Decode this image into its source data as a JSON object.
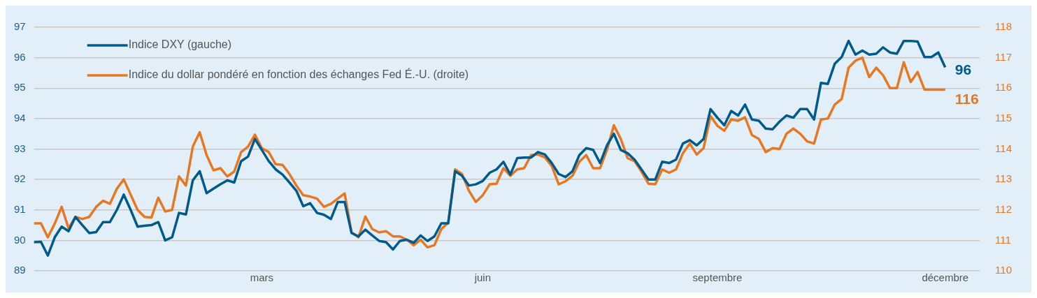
{
  "chart_data": {
    "type": "line",
    "categories": [
      null,
      null,
      null,
      null,
      null,
      null,
      null,
      null,
      null,
      null,
      null,
      null,
      null,
      null,
      null,
      null,
      null,
      null,
      null,
      null,
      null,
      null,
      null,
      null,
      null,
      null,
      null,
      null,
      null,
      null,
      null,
      null,
      null,
      "mars",
      null,
      null,
      null,
      null,
      null,
      null,
      null,
      null,
      null,
      null,
      null,
      null,
      null,
      null,
      null,
      null,
      null,
      null,
      null,
      null,
      null,
      null,
      null,
      null,
      null,
      null,
      null,
      null,
      null,
      null,
      null,
      "juin",
      null,
      null,
      null,
      null,
      null,
      null,
      null,
      null,
      null,
      null,
      null,
      null,
      null,
      null,
      null,
      null,
      null,
      null,
      null,
      null,
      null,
      null,
      null,
      null,
      null,
      null,
      null,
      null,
      null,
      null,
      null,
      null,
      null,
      "septembre",
      null,
      null,
      null,
      null,
      null,
      null,
      null,
      null,
      null,
      null,
      null,
      null,
      null,
      null,
      null,
      null,
      null,
      null,
      null,
      null,
      null,
      null,
      null,
      null,
      null,
      null,
      null,
      null,
      null,
      null,
      null,
      null,
      "décembre",
      null,
      null,
      null,
      null,
      null
    ],
    "series": [
      {
        "name": "Indice DXY (gauche)",
        "color": "#005a8c",
        "values": [
          89.94,
          89.95,
          89.5,
          90.1,
          90.45,
          90.3,
          90.77,
          90.5,
          90.24,
          90.27,
          90.6,
          90.6,
          91.0,
          91.5,
          91.0,
          90.45,
          90.48,
          90.5,
          90.6,
          90.0,
          90.1,
          90.9,
          90.85,
          91.97,
          92.27,
          91.55,
          91.7,
          91.84,
          91.97,
          91.9,
          92.6,
          92.75,
          93.33,
          92.97,
          92.6,
          92.33,
          92.16,
          91.9,
          91.63,
          91.12,
          91.22,
          90.9,
          90.84,
          90.7,
          91.26,
          91.26,
          90.24,
          90.13,
          90.35,
          90.16,
          89.98,
          89.94,
          89.7,
          89.98,
          90.02,
          89.92,
          90.16,
          89.98,
          90.13,
          90.56,
          90.56,
          92.27,
          92.12,
          91.8,
          91.84,
          91.95,
          92.22,
          92.33,
          92.58,
          92.16,
          92.7,
          92.72,
          92.72,
          92.9,
          92.82,
          92.54,
          92.18,
          92.08,
          92.27,
          92.8,
          93.03,
          92.97,
          92.54,
          93.12,
          93.5,
          92.97,
          92.86,
          92.65,
          92.33,
          92.0,
          92.0,
          92.58,
          92.54,
          92.65,
          93.18,
          93.29,
          93.12,
          93.33,
          94.31,
          94.03,
          93.78,
          94.25,
          94.1,
          94.46,
          93.97,
          93.93,
          93.67,
          93.65,
          93.9,
          94.1,
          94.03,
          94.31,
          94.31,
          93.97,
          95.17,
          95.14,
          95.8,
          96.02,
          96.55,
          96.1,
          96.23,
          96.1,
          96.13,
          96.34,
          96.17,
          96.13,
          96.55,
          96.55,
          96.53,
          96.02,
          96.02,
          96.17,
          95.68,
          null,
          null,
          null,
          null,
          null
        ]
      },
      {
        "name": "Indice du dollar pondéré en fonction des échanges Fed É.-U. (droite)",
        "color": "#e87722",
        "axis": "y2",
        "values": [
          111.56,
          111.56,
          111.1,
          111.55,
          112.1,
          111.4,
          111.77,
          111.7,
          111.77,
          112.1,
          112.3,
          112.2,
          112.7,
          113.0,
          112.5,
          112.0,
          111.77,
          111.75,
          112.4,
          111.95,
          112.0,
          113.1,
          112.8,
          114.08,
          114.55,
          113.8,
          113.3,
          113.37,
          113.1,
          113.26,
          113.9,
          114.08,
          114.47,
          114.03,
          113.9,
          113.5,
          113.48,
          113.18,
          112.8,
          112.48,
          112.44,
          112.37,
          112.1,
          112.2,
          112.37,
          112.54,
          111.26,
          111.1,
          111.78,
          111.37,
          111.26,
          111.3,
          111.13,
          111.13,
          111.02,
          110.84,
          111.02,
          110.77,
          110.84,
          111.37,
          111.58,
          113.33,
          113.18,
          112.63,
          112.26,
          112.48,
          112.84,
          112.86,
          113.37,
          113.12,
          113.33,
          113.37,
          113.8,
          113.82,
          113.72,
          113.44,
          112.84,
          112.94,
          113.12,
          113.58,
          113.8,
          113.37,
          113.37,
          113.97,
          114.78,
          114.33,
          113.7,
          113.6,
          113.26,
          112.86,
          112.84,
          113.33,
          113.22,
          113.33,
          113.86,
          114.18,
          113.82,
          114.03,
          115.08,
          114.76,
          114.6,
          114.97,
          114.93,
          115.04,
          114.46,
          114.33,
          113.9,
          114.03,
          114.0,
          114.5,
          114.67,
          114.5,
          114.25,
          114.18,
          114.97,
          115.0,
          115.46,
          115.64,
          116.67,
          116.9,
          117.0,
          116.36,
          116.67,
          116.42,
          116.0,
          116.0,
          116.85,
          116.2,
          116.53,
          115.95,
          115.95,
          115.95,
          115.95,
          null,
          null,
          null,
          null,
          null
        ]
      }
    ],
    "ylim": [
      89,
      97
    ],
    "yticks": [
      89,
      90,
      91,
      92,
      93,
      94,
      95,
      96,
      97
    ],
    "y2lim": [
      110,
      118
    ],
    "y2ticks": [
      110,
      111,
      112,
      113,
      114,
      115,
      116,
      117,
      118
    ],
    "annotations": [
      "96",
      "116"
    ],
    "grid": "y",
    "legend": "top left",
    "marker": "none",
    "line_style": "solid"
  }
}
